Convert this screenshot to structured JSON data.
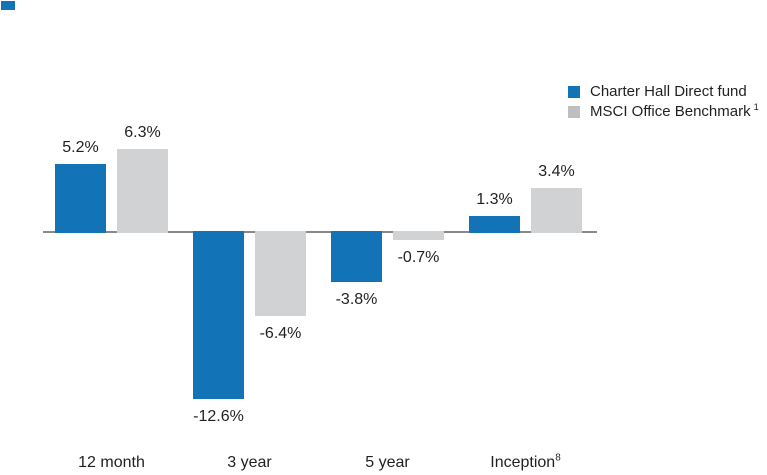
{
  "corner_marker": {
    "color": "#1274b7"
  },
  "legend": {
    "items": [
      {
        "label": "Charter Hall Direct fund",
        "superscript": "",
        "color": "#1274b7"
      },
      {
        "label": "MSCI Office Benchmark",
        "superscript": "1",
        "color": "#bdbfc1"
      }
    ]
  },
  "chart_data": {
    "type": "bar",
    "title": "",
    "xlabel": "",
    "ylabel": "",
    "categories": [
      "12 month",
      "3 year",
      "5 year",
      "Inception"
    ],
    "category_superscripts": [
      "",
      "",
      "",
      "8"
    ],
    "series": [
      {
        "name": "Charter Hall Direct fund",
        "color": "#1274b7",
        "values": [
          5.2,
          -12.6,
          -3.8,
          1.3
        ],
        "labels": [
          "5.2%",
          "-12.6%",
          "-3.8%",
          "1.3%"
        ]
      },
      {
        "name": "MSCI Office Benchmark",
        "name_superscript": "1",
        "color": "#d1d2d3",
        "values": [
          6.3,
          -6.4,
          -0.7,
          3.4
        ],
        "labels": [
          "6.3%",
          "-6.4%",
          "-0.7%",
          "3.4%"
        ]
      }
    ],
    "ylim": [
      -14,
      8
    ],
    "grid": false,
    "legend_position": "top-right",
    "zero_line_color": "#87898b",
    "text_color": "#231f20"
  }
}
